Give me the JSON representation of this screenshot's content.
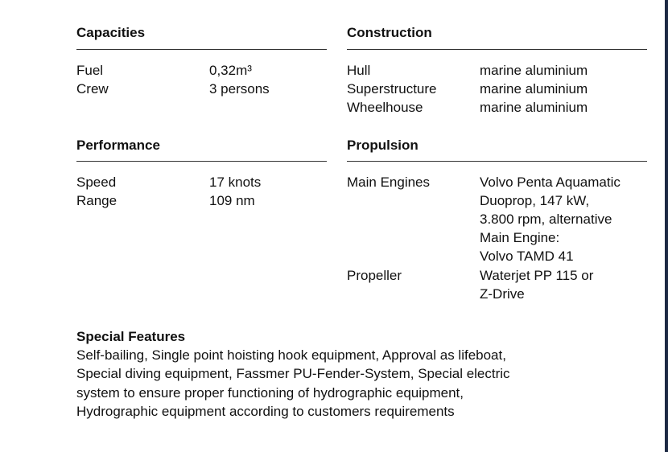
{
  "capacities": {
    "title": "Capacities",
    "rows": [
      {
        "label": "Fuel",
        "value": "0,32m³"
      },
      {
        "label": "Crew",
        "value": "3 persons"
      }
    ]
  },
  "construction": {
    "title": "Construction",
    "rows": [
      {
        "label": "Hull",
        "value": "marine aluminium"
      },
      {
        "label": "Superstructure",
        "value": "marine aluminium"
      },
      {
        "label": "Wheelhouse",
        "value": "marine aluminium"
      }
    ]
  },
  "performance": {
    "title": "Performance",
    "rows": [
      {
        "label": "Speed",
        "value": "17 knots"
      },
      {
        "label": "Range",
        "value": "109 nm"
      }
    ]
  },
  "propulsion": {
    "title": "Propulsion",
    "main_engines": {
      "label": "Main Engines",
      "lines": [
        "Volvo Penta Aquamatic",
        "Duoprop, 147 kW,",
        "3.800 rpm, alternative",
        "Main Engine:",
        "Volvo TAMD 41"
      ]
    },
    "propeller": {
      "label": "Propeller",
      "lines": [
        "Waterjet PP 115 or",
        "Z-Drive"
      ]
    }
  },
  "special_features": {
    "title": "Special Features",
    "lines": [
      "Self-bailing, Single point hoisting hook equipment, Approval as lifeboat,",
      "Special diving equipment, Fassmer PU-Fender-System, Special electric",
      "system to ensure proper functioning of hydrographic equipment,",
      "Hydrographic equipment according to customers requirements"
    ]
  },
  "colors": {
    "text": "#111111",
    "edge_bar": "#1d2a44"
  }
}
